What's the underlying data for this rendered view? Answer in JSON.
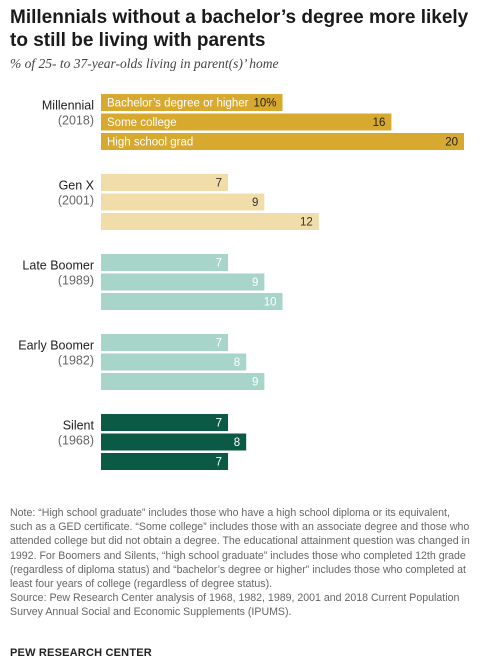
{
  "title": "Millennials without a bachelor’s degree more likely to still be living with parents",
  "subtitle": "% of 25- to 37-year-olds living in parent(s)’ home",
  "chart_data": {
    "type": "bar",
    "orientation": "horizontal",
    "title": "Millennials without a bachelor’s degree more likely to still be living with parents",
    "subtitle": "% of 25- to 37-year-olds living in parent(s)’ home",
    "series_labels": [
      "Bachelor’s degree or higher",
      "Some college",
      "High school grad"
    ],
    "value_suffixes": [
      "%",
      "",
      ""
    ],
    "xlim": [
      0,
      20
    ],
    "grid": false,
    "groups": [
      {
        "name": "Millennial",
        "year": "(2018)",
        "color": "#d7a92e",
        "values": [
          10,
          16,
          20
        ]
      },
      {
        "name": "Gen X",
        "year": "(2001)",
        "color": "#f0ddaa",
        "values": [
          7,
          9,
          12
        ]
      },
      {
        "name": "Late Boomer",
        "year": "(1989)",
        "color": "#a7d5ca",
        "values": [
          7,
          9,
          10
        ]
      },
      {
        "name": "Early Boomer",
        "year": "(1982)",
        "color": "#a7d5ca",
        "values": [
          7,
          8,
          9
        ]
      },
      {
        "name": "Silent",
        "year": "(1968)",
        "color": "#0b5a45",
        "values": [
          7,
          8,
          7
        ]
      }
    ]
  },
  "note": "Note: “High school graduate” includes those who have a high school diploma or its equivalent, such as a GED certificate. “Some college” includes those with an associate degree and those who attended college but did not obtain a degree. The educational attainment question was changed in 1992. For Boomers and Silents, “high school graduate” includes those who completed 12th grade (regardless of diploma status) and “bachelor’s degree or higher” includes those who completed at least four years of college (regardless of degree status).",
  "source": "Source: Pew Research Center analysis of 1968, 1982, 1989, 2001 and 2018 Current Population Survey Annual Social and Economic Supplements (IPUMS).",
  "footer": "PEW RESEARCH CENTER",
  "colors": {
    "label_light": "#ffffff",
    "label_dark": "#333333"
  }
}
